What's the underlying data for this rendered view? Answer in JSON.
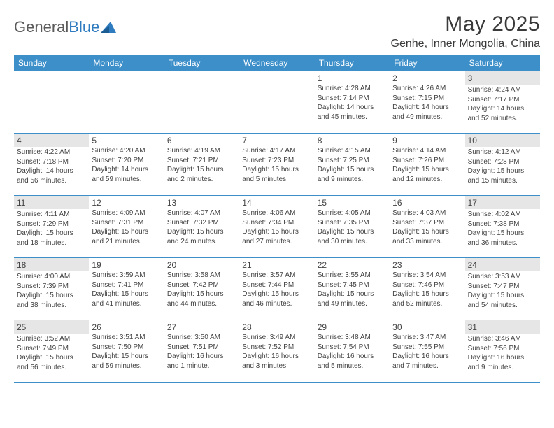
{
  "brand": {
    "part1": "General",
    "part2": "Blue"
  },
  "title": "May 2025",
  "location": "Genhe, Inner Mongolia, China",
  "header_bg": "#3d8fc9",
  "weekend_bg": "#e6e6e6",
  "weekdays": [
    "Sunday",
    "Monday",
    "Tuesday",
    "Wednesday",
    "Thursday",
    "Friday",
    "Saturday"
  ],
  "weeks": [
    [
      null,
      null,
      null,
      null,
      {
        "n": "1",
        "sr": "4:28 AM",
        "ss": "7:14 PM",
        "dl": "14 hours and 45 minutes."
      },
      {
        "n": "2",
        "sr": "4:26 AM",
        "ss": "7:15 PM",
        "dl": "14 hours and 49 minutes."
      },
      {
        "n": "3",
        "sr": "4:24 AM",
        "ss": "7:17 PM",
        "dl": "14 hours and 52 minutes."
      }
    ],
    [
      {
        "n": "4",
        "sr": "4:22 AM",
        "ss": "7:18 PM",
        "dl": "14 hours and 56 minutes."
      },
      {
        "n": "5",
        "sr": "4:20 AM",
        "ss": "7:20 PM",
        "dl": "14 hours and 59 minutes."
      },
      {
        "n": "6",
        "sr": "4:19 AM",
        "ss": "7:21 PM",
        "dl": "15 hours and 2 minutes."
      },
      {
        "n": "7",
        "sr": "4:17 AM",
        "ss": "7:23 PM",
        "dl": "15 hours and 5 minutes."
      },
      {
        "n": "8",
        "sr": "4:15 AM",
        "ss": "7:25 PM",
        "dl": "15 hours and 9 minutes."
      },
      {
        "n": "9",
        "sr": "4:14 AM",
        "ss": "7:26 PM",
        "dl": "15 hours and 12 minutes."
      },
      {
        "n": "10",
        "sr": "4:12 AM",
        "ss": "7:28 PM",
        "dl": "15 hours and 15 minutes."
      }
    ],
    [
      {
        "n": "11",
        "sr": "4:11 AM",
        "ss": "7:29 PM",
        "dl": "15 hours and 18 minutes."
      },
      {
        "n": "12",
        "sr": "4:09 AM",
        "ss": "7:31 PM",
        "dl": "15 hours and 21 minutes."
      },
      {
        "n": "13",
        "sr": "4:07 AM",
        "ss": "7:32 PM",
        "dl": "15 hours and 24 minutes."
      },
      {
        "n": "14",
        "sr": "4:06 AM",
        "ss": "7:34 PM",
        "dl": "15 hours and 27 minutes."
      },
      {
        "n": "15",
        "sr": "4:05 AM",
        "ss": "7:35 PM",
        "dl": "15 hours and 30 minutes."
      },
      {
        "n": "16",
        "sr": "4:03 AM",
        "ss": "7:37 PM",
        "dl": "15 hours and 33 minutes."
      },
      {
        "n": "17",
        "sr": "4:02 AM",
        "ss": "7:38 PM",
        "dl": "15 hours and 36 minutes."
      }
    ],
    [
      {
        "n": "18",
        "sr": "4:00 AM",
        "ss": "7:39 PM",
        "dl": "15 hours and 38 minutes."
      },
      {
        "n": "19",
        "sr": "3:59 AM",
        "ss": "7:41 PM",
        "dl": "15 hours and 41 minutes."
      },
      {
        "n": "20",
        "sr": "3:58 AM",
        "ss": "7:42 PM",
        "dl": "15 hours and 44 minutes."
      },
      {
        "n": "21",
        "sr": "3:57 AM",
        "ss": "7:44 PM",
        "dl": "15 hours and 46 minutes."
      },
      {
        "n": "22",
        "sr": "3:55 AM",
        "ss": "7:45 PM",
        "dl": "15 hours and 49 minutes."
      },
      {
        "n": "23",
        "sr": "3:54 AM",
        "ss": "7:46 PM",
        "dl": "15 hours and 52 minutes."
      },
      {
        "n": "24",
        "sr": "3:53 AM",
        "ss": "7:47 PM",
        "dl": "15 hours and 54 minutes."
      }
    ],
    [
      {
        "n": "25",
        "sr": "3:52 AM",
        "ss": "7:49 PM",
        "dl": "15 hours and 56 minutes."
      },
      {
        "n": "26",
        "sr": "3:51 AM",
        "ss": "7:50 PM",
        "dl": "15 hours and 59 minutes."
      },
      {
        "n": "27",
        "sr": "3:50 AM",
        "ss": "7:51 PM",
        "dl": "16 hours and 1 minute."
      },
      {
        "n": "28",
        "sr": "3:49 AM",
        "ss": "7:52 PM",
        "dl": "16 hours and 3 minutes."
      },
      {
        "n": "29",
        "sr": "3:48 AM",
        "ss": "7:54 PM",
        "dl": "16 hours and 5 minutes."
      },
      {
        "n": "30",
        "sr": "3:47 AM",
        "ss": "7:55 PM",
        "dl": "16 hours and 7 minutes."
      },
      {
        "n": "31",
        "sr": "3:46 AM",
        "ss": "7:56 PM",
        "dl": "16 hours and 9 minutes."
      }
    ]
  ],
  "labels": {
    "sunrise": "Sunrise: ",
    "sunset": "Sunset: ",
    "daylight": "Daylight: "
  }
}
